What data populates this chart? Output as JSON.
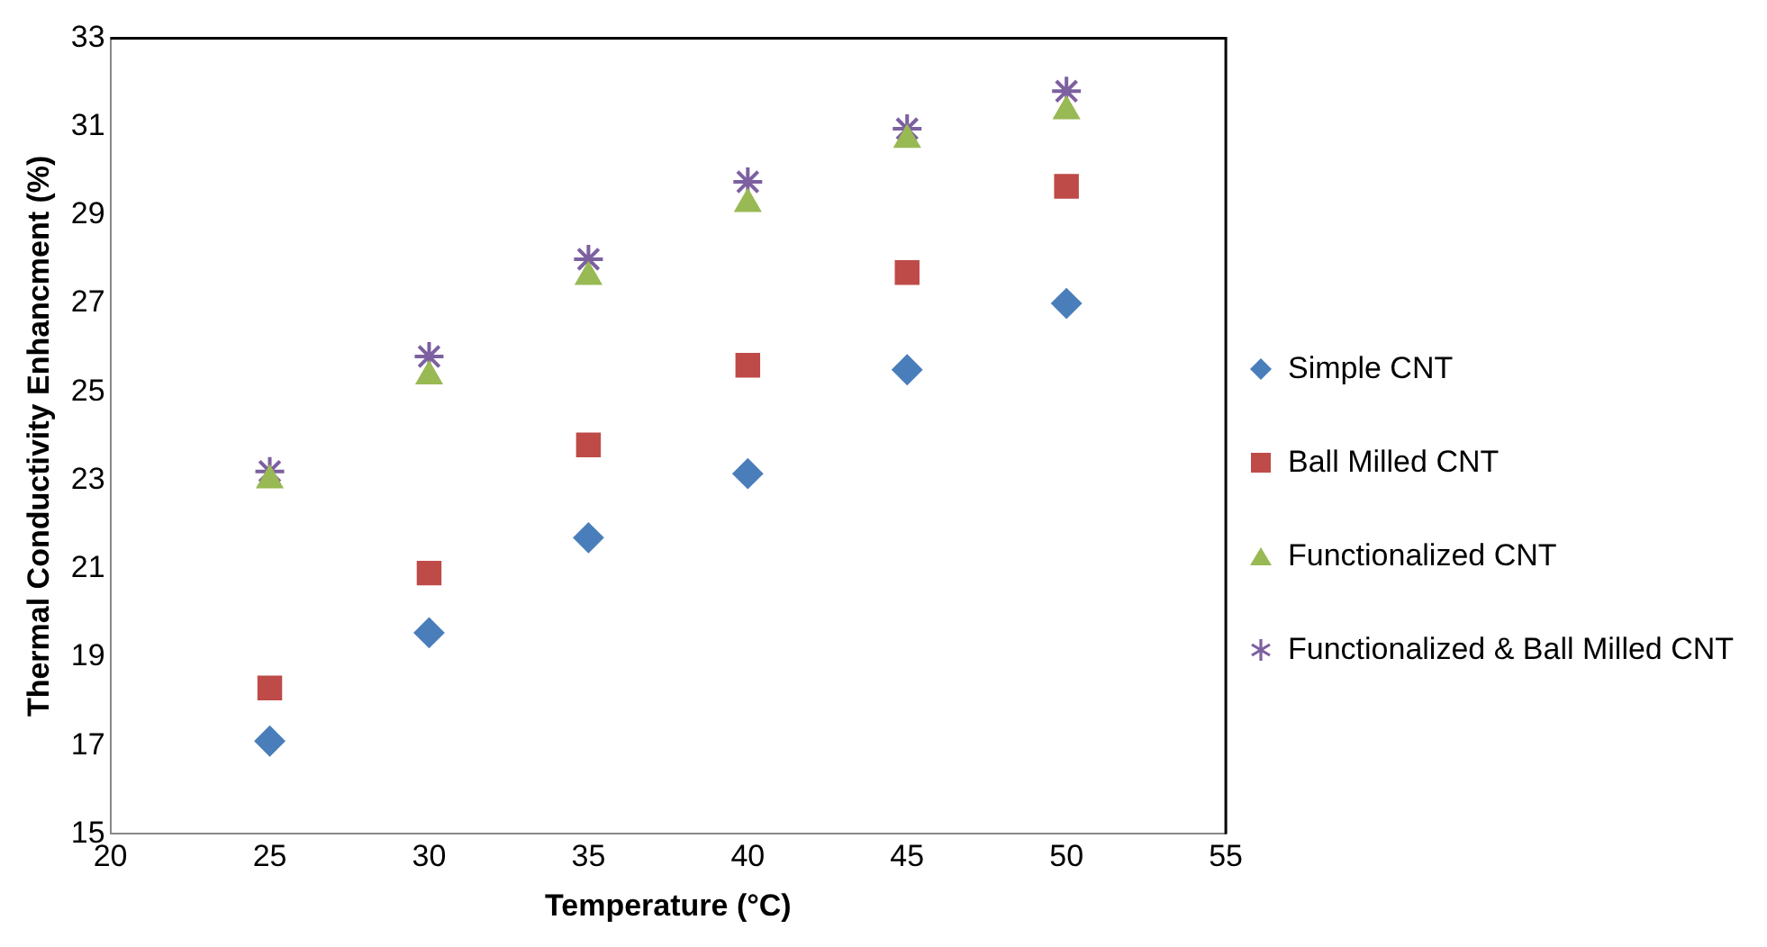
{
  "chart_data": {
    "type": "scatter",
    "xlabel": "Temperature (°C)",
    "ylabel": "Thermal Conductivity Enhancment (%)",
    "x": [
      25,
      30,
      35,
      40,
      45,
      50
    ],
    "xlim": [
      20,
      55
    ],
    "xticks": [
      20,
      25,
      30,
      35,
      40,
      45,
      50,
      55
    ],
    "ylim": [
      15,
      33
    ],
    "yticks": [
      15,
      17,
      19,
      21,
      23,
      25,
      27,
      29,
      31,
      33
    ],
    "grid": false,
    "legend": "right",
    "series": [
      {
        "name": "Simple CNT",
        "color": "#4a7ebb",
        "marker": "diamond",
        "values": [
          17.1,
          19.55,
          21.7,
          23.15,
          25.5,
          27.0
        ]
      },
      {
        "name": "Ball Milled CNT",
        "color": "#be4b48",
        "marker": "square",
        "values": [
          18.3,
          20.9,
          23.8,
          25.6,
          27.7,
          29.65
        ]
      },
      {
        "name": "Functionalized CNT",
        "color": "#98b954",
        "marker": "triangle",
        "values": [
          23.0,
          25.35,
          27.6,
          29.25,
          30.7,
          31.35
        ]
      },
      {
        "name": "Functionalized & Ball Milled CNT",
        "color": "#7d60a0",
        "marker": "cross",
        "values": [
          23.2,
          25.8,
          28.0,
          29.75,
          30.95,
          31.8
        ]
      }
    ]
  }
}
